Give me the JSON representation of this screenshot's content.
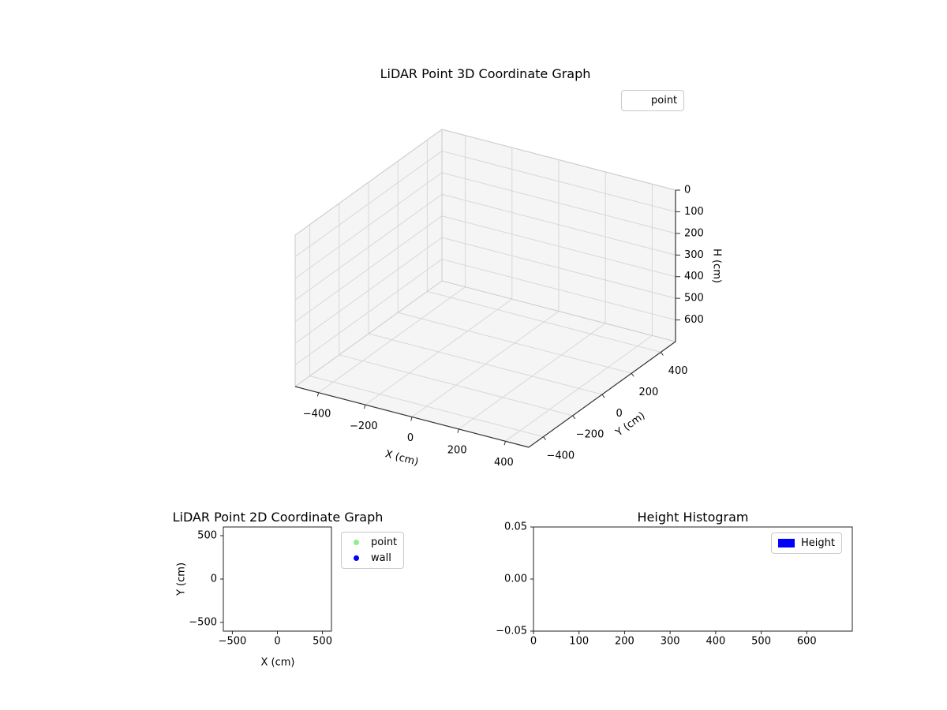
{
  "figure": {
    "background": "#ffffff"
  },
  "chart_data": [
    {
      "type": "scatter3d",
      "title": "LiDAR Point 3D Coordinate Graph",
      "xlabel": "X (cm)",
      "ylabel": "Y (cm)",
      "zlabel": "H (cm)",
      "xlim": [
        -500,
        500
      ],
      "ylim": [
        -500,
        500
      ],
      "zlim": [
        0,
        700
      ],
      "zaxis_inverted": true,
      "grid": true,
      "xticks": [
        {
          "v": -400,
          "label": "−400"
        },
        {
          "v": -200,
          "label": "−200"
        },
        {
          "v": 0,
          "label": "0"
        },
        {
          "v": 200,
          "label": "200"
        },
        {
          "v": 400,
          "label": "400"
        }
      ],
      "yticks": [
        {
          "v": -400,
          "label": "−400"
        },
        {
          "v": -200,
          "label": "−200"
        },
        {
          "v": 0,
          "label": "0"
        },
        {
          "v": 200,
          "label": "200"
        },
        {
          "v": 400,
          "label": "400"
        }
      ],
      "zticks": [
        {
          "v": 0,
          "label": "0"
        },
        {
          "v": 100,
          "label": "100"
        },
        {
          "v": 200,
          "label": "200"
        },
        {
          "v": 300,
          "label": "300"
        },
        {
          "v": 400,
          "label": "400"
        },
        {
          "v": 500,
          "label": "500"
        },
        {
          "v": 600,
          "label": "600"
        }
      ],
      "legend": [
        {
          "label": "point",
          "marker": "none",
          "color": null
        }
      ],
      "points": []
    },
    {
      "type": "scatter",
      "title": "LiDAR Point 2D Coordinate Graph",
      "xlabel": "X (cm)",
      "ylabel": "Y (cm)",
      "xlim": [
        -600,
        600
      ],
      "ylim": [
        -600,
        600
      ],
      "xticks": [
        {
          "v": -500,
          "label": "−500"
        },
        {
          "v": 0,
          "label": "0"
        },
        {
          "v": 500,
          "label": "500"
        }
      ],
      "yticks": [
        {
          "v": -500,
          "label": "−500"
        },
        {
          "v": 0,
          "label": "0"
        },
        {
          "v": 500,
          "label": "500"
        }
      ],
      "legend": [
        {
          "label": "point",
          "marker": "dot",
          "color": "#90ee90"
        },
        {
          "label": "wall",
          "marker": "dot",
          "color": "#0000ff"
        }
      ],
      "points": []
    },
    {
      "type": "bar",
      "title": "Height Histogram",
      "xlabel": "",
      "ylabel": "",
      "xlim": [
        0,
        700
      ],
      "ylim": [
        -0.05,
        0.05
      ],
      "xticks": [
        {
          "v": 0,
          "label": "0"
        },
        {
          "v": 100,
          "label": "100"
        },
        {
          "v": 200,
          "label": "200"
        },
        {
          "v": 300,
          "label": "300"
        },
        {
          "v": 400,
          "label": "400"
        },
        {
          "v": 500,
          "label": "500"
        },
        {
          "v": 600,
          "label": "600"
        }
      ],
      "yticks": [
        {
          "v": -0.05,
          "label": "−0.05"
        },
        {
          "v": 0,
          "label": "0.00"
        },
        {
          "v": 0.05,
          "label": "0.05"
        }
      ],
      "legend": [
        {
          "label": "Height",
          "marker": "rect",
          "color": "#0000ff"
        }
      ],
      "values": []
    }
  ]
}
